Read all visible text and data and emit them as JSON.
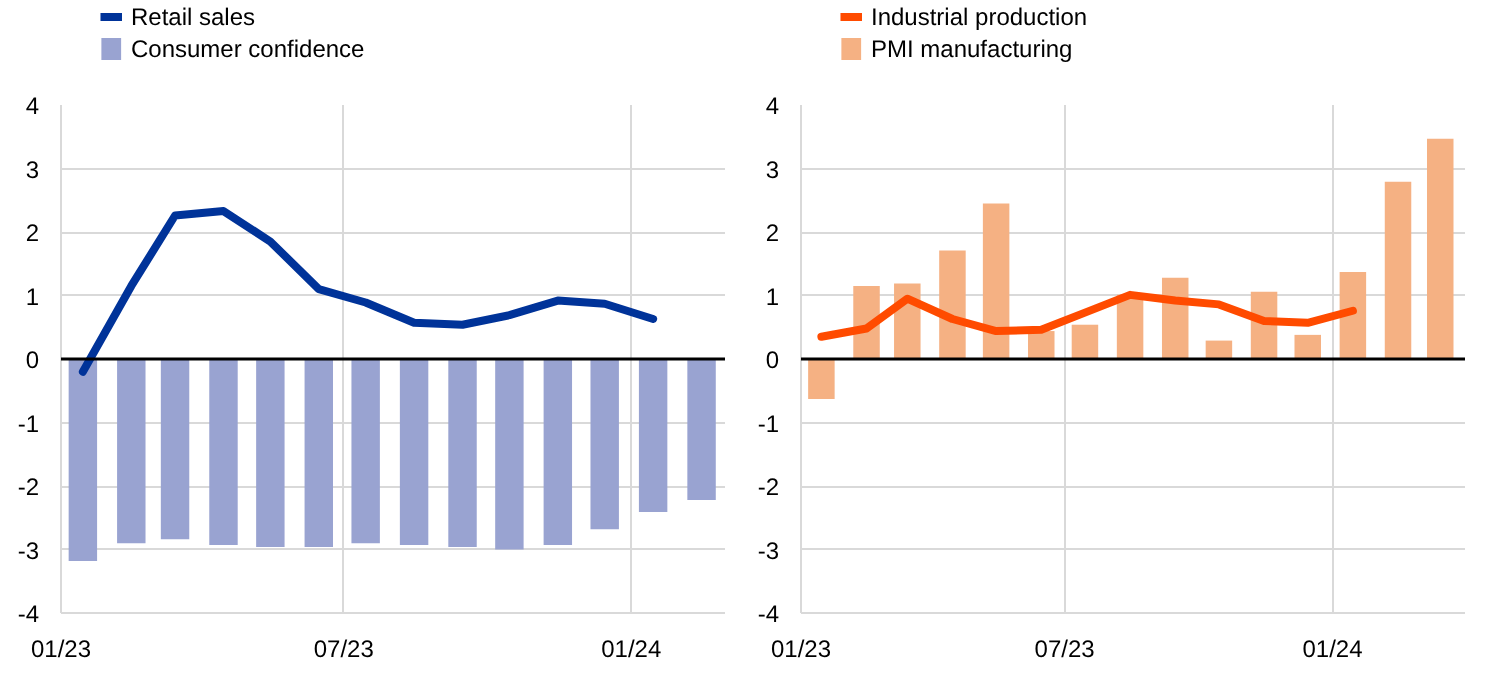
{
  "chart_data": [
    {
      "type": "bar",
      "legend": "top left",
      "grid": true,
      "xlim": [
        "2023-01-01",
        "2024-03-01"
      ],
      "xticks": [
        {
          "value": "2023-01-01",
          "label": "01/23"
        },
        {
          "value": "2023-07-01",
          "label": "07/23"
        },
        {
          "value": "2024-01-01",
          "label": "01/24"
        }
      ],
      "ylim": [
        -4,
        4
      ],
      "yticks": [
        -4,
        -3,
        -2,
        -1,
        0,
        1,
        2,
        3,
        4
      ],
      "ref_lines": [
        {
          "axis": "y",
          "value": 0,
          "color": "#000000"
        }
      ],
      "series": [
        {
          "name": "Retail sales",
          "type": "line",
          "color": "#003399",
          "x": [
            "2023-01-15",
            "2023-02-15",
            "2023-03-15",
            "2023-04-15",
            "2023-05-15",
            "2023-06-15",
            "2023-07-15",
            "2023-08-15",
            "2023-09-15",
            "2023-10-15",
            "2023-11-15",
            "2023-12-15",
            "2024-01-15"
          ],
          "values": [
            -0.2,
            1.15,
            2.26,
            2.33,
            1.85,
            1.1,
            0.89,
            0.57,
            0.54,
            0.69,
            0.92,
            0.87,
            0.63
          ]
        },
        {
          "name": "Consumer confidence",
          "color": "#99a3d1",
          "x": [
            "2023-01-15",
            "2023-02-15",
            "2023-03-15",
            "2023-04-15",
            "2023-05-15",
            "2023-06-15",
            "2023-07-15",
            "2023-08-15",
            "2023-09-15",
            "2023-10-15",
            "2023-11-15",
            "2023-12-15",
            "2024-01-15",
            "2024-02-15"
          ],
          "values": [
            -3.18,
            -2.9,
            -2.84,
            -2.93,
            -2.96,
            -2.96,
            -2.9,
            -2.93,
            -2.96,
            -3.0,
            -2.93,
            -2.68,
            -2.41,
            -2.22
          ]
        }
      ]
    },
    {
      "type": "bar",
      "legend": "top left",
      "grid": true,
      "xlim": [
        "2023-01-01",
        "2024-04-01"
      ],
      "xticks": [
        {
          "value": "2023-01-01",
          "label": "01/23"
        },
        {
          "value": "2023-07-01",
          "label": "07/23"
        },
        {
          "value": "2024-01-01",
          "label": "01/24"
        }
      ],
      "ylim": [
        -4,
        4
      ],
      "yticks": [
        -4,
        -3,
        -2,
        -1,
        0,
        1,
        2,
        3,
        4
      ],
      "ref_lines": [
        {
          "axis": "y",
          "value": 0,
          "color": "#000000"
        }
      ],
      "series": [
        {
          "name": "Industrial production",
          "type": "line",
          "color": "#ff4b00",
          "x": [
            "2023-01-15",
            "2023-02-15",
            "2023-03-15",
            "2023-04-15",
            "2023-05-15",
            "2023-06-15",
            "2023-07-15",
            "2023-08-15",
            "2023-09-15",
            "2023-10-15",
            "2023-11-15",
            "2023-12-15",
            "2024-01-15"
          ],
          "values": [
            0.35,
            0.48,
            0.95,
            0.63,
            0.44,
            0.46,
            0.73,
            1.01,
            0.92,
            0.86,
            0.6,
            0.57,
            0.76
          ]
        },
        {
          "name": "PMI manufacturing",
          "color": "#f5b183",
          "x": [
            "2023-01-15",
            "2023-02-15",
            "2023-03-15",
            "2023-04-15",
            "2023-05-15",
            "2023-06-15",
            "2023-07-15",
            "2023-08-15",
            "2023-09-15",
            "2023-10-15",
            "2023-11-15",
            "2023-12-15",
            "2024-01-15",
            "2024-02-15",
            "2024-03-15"
          ],
          "values": [
            -0.63,
            1.15,
            1.19,
            1.71,
            2.45,
            0.44,
            0.54,
            1.01,
            1.28,
            0.29,
            1.06,
            0.38,
            1.37,
            2.79,
            3.47
          ]
        }
      ]
    }
  ]
}
